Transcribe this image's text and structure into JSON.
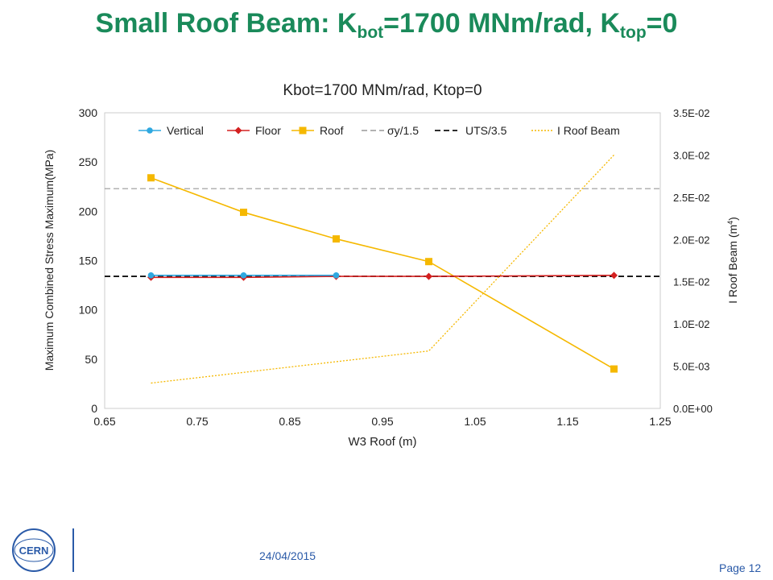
{
  "slide": {
    "title_main": "Small Roof Beam: K",
    "title_sub1": "bot",
    "title_mid": "=1700 MNm/rad, K",
    "title_sub2": "top",
    "title_end": "=0",
    "date": "24/04/2015",
    "page": "Page 12",
    "logo_text": "CERN",
    "colors": {
      "title": "#1a8a5a",
      "footer": "#2a5aa8"
    }
  },
  "chart_data": {
    "type": "line",
    "title": "Kbot=1700 MNm/rad, Ktop=0",
    "xlabel": "W3 Roof (m)",
    "ylabel": "Maximum  Combined  Stress Maximum(MPa)",
    "y2label_main": "I Roof Beam (m",
    "y2label_sup": "4",
    "y2label_end": ")",
    "xlim": [
      0.65,
      1.25
    ],
    "ylim": [
      0,
      300
    ],
    "y2lim": [
      0,
      0.035
    ],
    "xticks": [
      "0.65",
      "0.75",
      "0.85",
      "0.95",
      "1.05",
      "1.15",
      "1.25"
    ],
    "yticks": [
      "0",
      "50",
      "100",
      "150",
      "200",
      "250",
      "300"
    ],
    "y2ticks": [
      "0.0E+00",
      "5.0E-03",
      "1.0E-02",
      "1.5E-02",
      "2.0E-02",
      "2.5E-02",
      "3.0E-02",
      "3.5E-02"
    ],
    "grid": false,
    "legend_position": "top",
    "series": [
      {
        "name": "Vertical",
        "x": [
          0.7,
          0.8,
          0.9
        ],
        "y": [
          135,
          135,
          135
        ],
        "color": "#2fa8e0",
        "marker": "circle",
        "axis": "left"
      },
      {
        "name": "Floor",
        "x": [
          0.7,
          0.8,
          0.9,
          1.0,
          1.2
        ],
        "y": [
          133,
          133,
          134,
          134,
          135
        ],
        "color": "#d42020",
        "marker": "diamond",
        "axis": "left"
      },
      {
        "name": "Roof",
        "x": [
          0.7,
          0.8,
          0.9,
          1.0,
          1.2
        ],
        "y": [
          234,
          199,
          172,
          149,
          40
        ],
        "color": "#f5b800",
        "marker": "square",
        "axis": "left"
      },
      {
        "name": "σy/1.5",
        "hline": 223,
        "color": "#999999",
        "style": "dashed",
        "axis": "left"
      },
      {
        "name": "UTS/3.5",
        "hline": 134,
        "color": "#111111",
        "style": "dashed",
        "axis": "left"
      },
      {
        "name": "I Roof Beam",
        "x": [
          0.7,
          1.0,
          1.2
        ],
        "y": [
          0.003,
          0.0068,
          0.03
        ],
        "color": "#f5b800",
        "style": "dotted",
        "axis": "right"
      }
    ]
  }
}
